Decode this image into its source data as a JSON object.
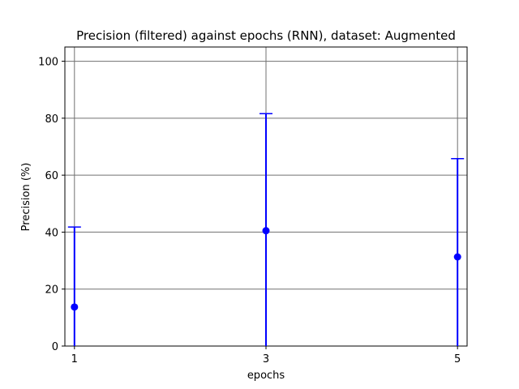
{
  "chart_data": {
    "type": "scatter",
    "title": "Precision (filtered) against epochs (RNN), dataset: Augmented",
    "xlabel": "epochs",
    "ylabel": "Precision (%)",
    "xlim": [
      0.9,
      5.1
    ],
    "ylim": [
      0,
      105
    ],
    "xticks": [
      1,
      3,
      5
    ],
    "yticks": [
      0,
      20,
      40,
      60,
      80,
      100
    ],
    "grid": true,
    "series": [
      {
        "color": "#0000ff",
        "points": [
          {
            "x": 1,
            "y": 13.7,
            "err_low": 0,
            "err_high": 41.8
          },
          {
            "x": 3,
            "y": 40.5,
            "err_low": 0,
            "err_high": 81.6
          },
          {
            "x": 5,
            "y": 31.3,
            "err_low": 0,
            "err_high": 65.8
          }
        ]
      }
    ]
  }
}
